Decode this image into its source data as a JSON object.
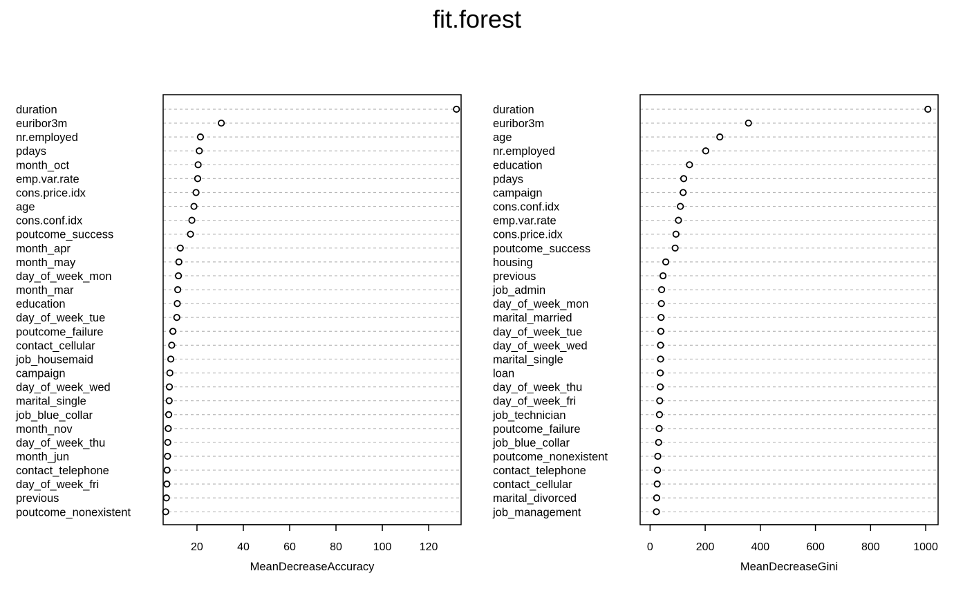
{
  "title": "fit.forest",
  "chart_data": [
    {
      "type": "scatter",
      "style": "dotchart",
      "xlabel": "MeanDecreaseAccuracy",
      "xlim": [
        5.4,
        134
      ],
      "xticks": [
        20,
        40,
        60,
        80,
        100,
        120
      ],
      "grid": "dashed horizontal guides",
      "categories": [
        "duration",
        "euribor3m",
        "nr.employed",
        "pdays",
        "month_oct",
        "emp.var.rate",
        "cons.price.idx",
        "age",
        "cons.conf.idx",
        "poutcome_success",
        "month_apr",
        "month_may",
        "day_of_week_mon",
        "month_mar",
        "education",
        "day_of_week_tue",
        "poutcome_failure",
        "contact_cellular",
        "job_housemaid",
        "campaign",
        "day_of_week_wed",
        "marital_single",
        "job_blue_collar",
        "month_nov",
        "day_of_week_thu",
        "month_jun",
        "contact_telephone",
        "day_of_week_fri",
        "previous",
        "poutcome_nonexistent"
      ],
      "values": [
        132.0,
        30.5,
        21.5,
        21.0,
        20.5,
        20.3,
        19.6,
        18.7,
        17.8,
        17.2,
        12.8,
        12.2,
        12.0,
        11.7,
        11.5,
        11.3,
        9.6,
        9.1,
        8.7,
        8.3,
        8.1,
        8.0,
        7.8,
        7.6,
        7.4,
        7.3,
        7.1,
        7.0,
        6.8,
        6.5
      ]
    },
    {
      "type": "scatter",
      "style": "dotchart",
      "xlabel": "MeanDecreaseGini",
      "xlim": [
        -36,
        1045
      ],
      "xticks": [
        0,
        200,
        400,
        600,
        800,
        1000
      ],
      "grid": "dashed horizontal guides",
      "categories": [
        "duration",
        "euribor3m",
        "age",
        "nr.employed",
        "education",
        "pdays",
        "campaign",
        "cons.conf.idx",
        "emp.var.rate",
        "cons.price.idx",
        "poutcome_success",
        "housing",
        "previous",
        "job_admin",
        "day_of_week_mon",
        "marital_married",
        "day_of_week_tue",
        "day_of_week_wed",
        "marital_single",
        "loan",
        "day_of_week_thu",
        "day_of_week_fri",
        "job_technician",
        "poutcome_failure",
        "job_blue_collar",
        "poutcome_nonexistent",
        "contact_telephone",
        "contact_cellular",
        "marital_divorced",
        "job_management"
      ],
      "values": [
        1008,
        357,
        253,
        202,
        143,
        122,
        120,
        110,
        103,
        94,
        91,
        57,
        47,
        42,
        41,
        40,
        39,
        38,
        38,
        37,
        37,
        35,
        34,
        33,
        31,
        28,
        27,
        26,
        24,
        23
      ]
    }
  ]
}
